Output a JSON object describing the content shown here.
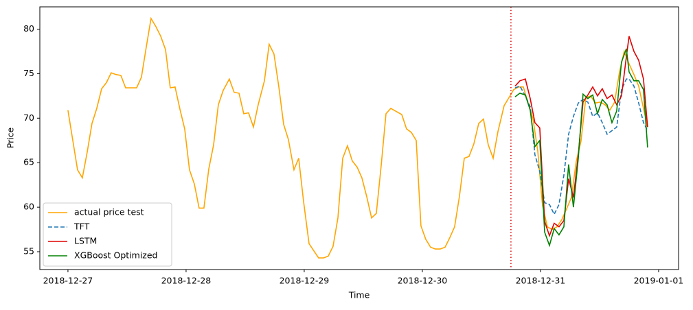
{
  "chart_data": {
    "type": "line",
    "xlabel": "Time",
    "ylabel": "Price",
    "xlim": [
      -0.238,
      5.169
    ],
    "ylim": [
      53,
      82.5
    ],
    "xticks": [
      {
        "value": 0,
        "label": "2018-12-27"
      },
      {
        "value": 1,
        "label": "2018-12-28"
      },
      {
        "value": 2,
        "label": "2018-12-29"
      },
      {
        "value": 3,
        "label": "2018-12-30"
      },
      {
        "value": 4,
        "label": "2018-12-31"
      },
      {
        "value": 5,
        "label": "2019-01-01"
      }
    ],
    "yticks": [
      55,
      60,
      65,
      70,
      75,
      80
    ],
    "vline": {
      "x": 3.75,
      "color": "#e00000"
    },
    "legend": "lower left",
    "series": [
      {
        "name": "actual price test",
        "color": "#ffa500",
        "dash": false,
        "x": [
          0,
          0.041,
          0.081,
          0.122,
          0.163,
          0.203,
          0.244,
          0.285,
          0.326,
          0.366,
          0.407,
          0.448,
          0.488,
          0.529,
          0.581,
          0.622,
          0.663,
          0.703,
          0.744,
          0.785,
          0.826,
          0.866,
          0.907,
          0.948,
          0.988,
          1.029,
          1.07,
          1.11,
          1.151,
          1.192,
          1.233,
          1.273,
          1.314,
          1.366,
          1.407,
          1.448,
          1.488,
          1.529,
          1.57,
          1.61,
          1.663,
          1.703,
          1.744,
          1.785,
          1.826,
          1.866,
          1.913,
          1.953,
          1.994,
          2.041,
          2.081,
          2.122,
          2.163,
          2.203,
          2.244,
          2.285,
          2.326,
          2.366,
          2.407,
          2.448,
          2.488,
          2.529,
          2.57,
          2.61,
          2.651,
          2.692,
          2.733,
          2.773,
          2.826,
          2.866,
          2.907,
          2.948,
          2.988,
          3.029,
          3.07,
          3.11,
          3.151,
          3.192,
          3.233,
          3.273,
          3.314,
          3.355,
          3.395,
          3.436,
          3.477,
          3.517,
          3.558,
          3.599,
          3.64,
          3.692,
          3.733,
          3.773,
          3.814,
          3.855,
          3.895,
          3.936,
          3.977,
          4.017,
          4.058,
          4.099,
          4.14,
          4.18,
          4.221,
          4.262,
          4.302,
          4.343,
          4.384,
          4.424,
          4.465,
          4.506,
          4.547,
          4.587,
          4.628,
          4.669,
          4.709,
          4.75,
          4.791,
          4.831,
          4.872,
          4.907
        ],
        "values": [
          70.9,
          67.5,
          64.2,
          63.3,
          66.2,
          69.4,
          71.1,
          73.3,
          74.0,
          75.1,
          74.9,
          74.8,
          73.4,
          73.4,
          73.4,
          74.6,
          78.0,
          81.2,
          80.3,
          79.2,
          77.7,
          73.4,
          73.5,
          71.0,
          68.8,
          64.2,
          62.6,
          59.9,
          59.9,
          64.3,
          67.0,
          71.5,
          73.1,
          74.4,
          72.9,
          72.8,
          70.5,
          70.6,
          69.0,
          71.5,
          74.2,
          78.3,
          77.2,
          73.5,
          69.3,
          67.6,
          64.2,
          65.5,
          60.7,
          55.9,
          55.1,
          54.3,
          54.3,
          54.5,
          55.6,
          58.8,
          65.5,
          66.9,
          65.2,
          64.5,
          63.3,
          61.2,
          58.8,
          59.3,
          64.6,
          70.5,
          71.1,
          70.8,
          70.4,
          68.8,
          68.4,
          67.5,
          57.9,
          56.4,
          55.5,
          55.3,
          55.3,
          55.5,
          56.6,
          57.8,
          61.2,
          65.5,
          65.7,
          67.1,
          69.4,
          69.9,
          67.0,
          65.5,
          68.5,
          71.4,
          72.3,
          73.2,
          73.5,
          73.5,
          71.7,
          70.0,
          66.3,
          60.2,
          57.8,
          57.5,
          57.8,
          58.6,
          59.8,
          61.1,
          65.1,
          67.4,
          72.3,
          72.5,
          71.7,
          71.8,
          71.5,
          70.9,
          71.8,
          75.2,
          77.5,
          76.1,
          74.9,
          73.6,
          71.1,
          69.0
        ]
      },
      {
        "name": "TFT",
        "color": "#1f77b4",
        "dash": true,
        "x": [
          3.785,
          3.826,
          3.872,
          3.913,
          3.953,
          3.994,
          4.035,
          4.076,
          4.116,
          4.157,
          4.198,
          4.238,
          4.279,
          4.32,
          4.36,
          4.401,
          4.442,
          4.483,
          4.523,
          4.564,
          4.605,
          4.645,
          4.686,
          4.727,
          4.75,
          4.791,
          4.831,
          4.872,
          4.907
        ],
        "values": [
          73.4,
          73.6,
          72.5,
          71.3,
          65.9,
          64.0,
          60.5,
          60.3,
          59.2,
          60.3,
          63.6,
          68.2,
          70.2,
          71.7,
          72.1,
          71.8,
          70.2,
          70.6,
          69.5,
          68.2,
          68.6,
          69.0,
          73.2,
          74.4,
          74.4,
          73.6,
          71.7,
          69.5,
          68.6
        ]
      },
      {
        "name": "LSTM",
        "color": "#e00000",
        "dash": false,
        "x": [
          3.785,
          3.826,
          3.872,
          3.913,
          3.953,
          3.994,
          4.035,
          4.076,
          4.116,
          4.157,
          4.198,
          4.238,
          4.279,
          4.32,
          4.36,
          4.401,
          4.442,
          4.483,
          4.523,
          4.564,
          4.605,
          4.645,
          4.686,
          4.727,
          4.75,
          4.791,
          4.831,
          4.872,
          4.907
        ],
        "values": [
          73.6,
          74.2,
          74.4,
          72.2,
          69.5,
          68.9,
          58.4,
          56.8,
          58.2,
          57.8,
          58.5,
          63.2,
          61.1,
          65.9,
          71.8,
          72.6,
          73.5,
          72.5,
          73.3,
          72.2,
          72.6,
          71.5,
          72.5,
          76.9,
          79.2,
          77.5,
          76.5,
          74.4,
          69.0
        ]
      },
      {
        "name": "XGBoost Optimized",
        "color": "#008000",
        "dash": false,
        "x": [
          3.785,
          3.826,
          3.872,
          3.913,
          3.953,
          3.994,
          4.035,
          4.076,
          4.116,
          4.157,
          4.198,
          4.238,
          4.279,
          4.32,
          4.36,
          4.401,
          4.442,
          4.483,
          4.523,
          4.564,
          4.605,
          4.645,
          4.686,
          4.727,
          4.75,
          4.791,
          4.831,
          4.872,
          4.907
        ],
        "values": [
          72.4,
          72.8,
          72.6,
          70.9,
          66.8,
          67.5,
          57.2,
          55.7,
          57.6,
          56.9,
          57.8,
          64.8,
          60.0,
          65.5,
          72.7,
          72.2,
          72.6,
          70.5,
          72.1,
          71.5,
          69.5,
          70.8,
          76.3,
          77.8,
          75.2,
          74.2,
          74.2,
          73.2,
          66.7
        ]
      }
    ]
  }
}
